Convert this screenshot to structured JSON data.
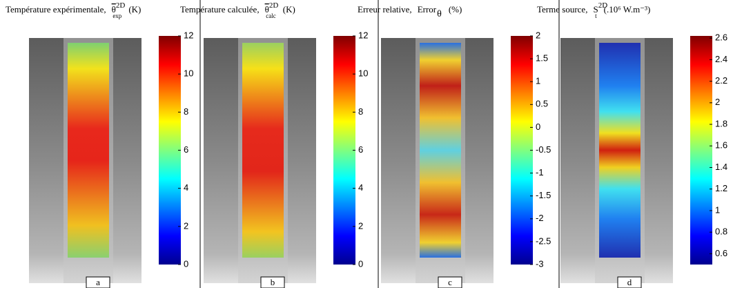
{
  "chart_data": [
    {
      "type": "heatmap",
      "title": "Température expérimentale,",
      "symbol": "θ",
      "overline": true,
      "superscript": "2D",
      "subscript": "exp",
      "unit": "(K)",
      "clim": [
        0,
        12
      ],
      "cticks": [
        0,
        2,
        4,
        6,
        8,
        10,
        12
      ],
      "label": "a"
    },
    {
      "type": "heatmap",
      "title": "Température calculée,",
      "symbol": "θ",
      "overline": true,
      "superscript": "2D",
      "subscript": "calc",
      "unit": "(K)",
      "clim": [
        0,
        12
      ],
      "cticks": [
        0,
        2,
        4,
        6,
        8,
        10,
        12
      ],
      "label": "b"
    },
    {
      "type": "heatmap",
      "title": "Erreur relative,",
      "symbol": "Error",
      "overline": false,
      "subscript": "θ",
      "unit": "(%)",
      "clim": [
        -3,
        2
      ],
      "cticks": [
        -3,
        -2.5,
        -2,
        -1.5,
        -1,
        -0.5,
        0,
        0.5,
        1,
        1.5,
        2
      ],
      "label": "c"
    },
    {
      "type": "heatmap",
      "title": "Terme source,",
      "symbol": "S",
      "overline": false,
      "superscript": "2D",
      "subscript": "t",
      "unit": "(.10⁶ W.m⁻³)",
      "clim": [
        0.5,
        2.62
      ],
      "cticks": [
        0.6,
        0.8,
        1,
        1.2,
        1.4,
        1.6,
        1.8,
        2,
        2.2,
        2.4,
        2.6
      ],
      "label": "d"
    }
  ]
}
